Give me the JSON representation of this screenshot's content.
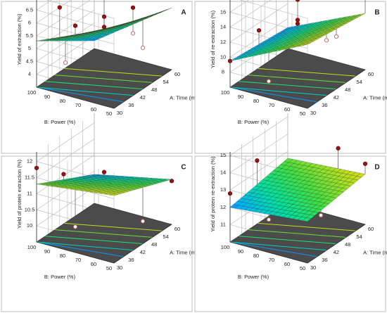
{
  "chart_data": [
    {
      "type": "surface3d",
      "panel_label": "A",
      "zlabel": "Yield of extraction (%)",
      "xlabel": "A: Time (min)",
      "ylabel": "B: Power (%)",
      "x_ticks": [
        "30",
        "36",
        "42",
        "48",
        "54",
        "60"
      ],
      "y_ticks": [
        "50",
        "60",
        "70",
        "80",
        "90",
        "100"
      ],
      "z_ticks": [
        "4",
        "4.5",
        "5",
        "5.5",
        "6",
        "6.5",
        "7"
      ],
      "xlim": [
        30,
        60
      ],
      "ylim": [
        50,
        100
      ],
      "zlim": [
        3.5,
        7
      ],
      "surface_corners": {
        "time30_power50": 6.6,
        "time60_power50": 5.9,
        "time30_power100": 5.3,
        "time60_power100": 3.8
      },
      "design_points": [
        {
          "time": 42,
          "power": 100,
          "value": 6.0,
          "above_surface": true
        },
        {
          "time": 30,
          "power": 75,
          "value": 6.3,
          "above_surface": true
        },
        {
          "time": 45,
          "power": 75,
          "value": 6.9,
          "above_surface": true
        },
        {
          "time": 45,
          "power": 75,
          "value": 5.9,
          "above_surface": true
        },
        {
          "time": 45,
          "power": 75,
          "value": 5.5,
          "above_surface": true
        },
        {
          "time": 60,
          "power": 75,
          "value": 5.5,
          "above_surface": true
        },
        {
          "time": 45,
          "power": 50,
          "value": 5.1,
          "above_surface": false
        },
        {
          "time": 60,
          "power": 75,
          "value": 4.5,
          "above_surface": false
        },
        {
          "time": 45,
          "power": 100,
          "value": 3.7,
          "above_surface": false
        }
      ]
    },
    {
      "type": "surface3d",
      "panel_label": "B",
      "zlabel": "Yield of re-extraction (%)",
      "xlabel": "A: Time (min)",
      "ylabel": "B: Power (%)",
      "x_ticks": [
        "30",
        "36",
        "42",
        "48",
        "54",
        "60"
      ],
      "y_ticks": [
        "50",
        "60",
        "70",
        "80",
        "90",
        "100"
      ],
      "z_ticks": [
        "8",
        "10",
        "12",
        "14",
        "16",
        "18"
      ],
      "xlim": [
        30,
        60
      ],
      "ylim": [
        50,
        100
      ],
      "zlim": [
        6,
        18
      ],
      "surface_corners": {
        "time30_power50": 14.5,
        "time60_power50": 13.5,
        "time30_power100": 9.5,
        "time60_power100": 8.8
      },
      "design_points": [
        {
          "time": 30,
          "power": 100,
          "value": 9.5,
          "above_surface": true
        },
        {
          "time": 45,
          "power": 75,
          "value": 16.5,
          "above_surface": true
        },
        {
          "time": 45,
          "power": 75,
          "value": 13.8,
          "above_surface": true
        },
        {
          "time": 45,
          "power": 75,
          "value": 13.3,
          "above_surface": true
        },
        {
          "time": 45,
          "power": 75,
          "value": 12.3,
          "above_surface": true
        },
        {
          "time": 60,
          "power": 50,
          "value": 15.8,
          "above_surface": true
        },
        {
          "time": 45,
          "power": 100,
          "value": 11.0,
          "above_surface": true
        },
        {
          "time": 30,
          "power": 75,
          "value": 8.2,
          "above_surface": false
        },
        {
          "time": 60,
          "power": 75,
          "value": 8.5,
          "above_surface": false
        },
        {
          "time": 45,
          "power": 50,
          "value": 13.0,
          "above_surface": false
        }
      ]
    },
    {
      "type": "surface3d",
      "panel_label": "C",
      "zlabel": "Yield of protein extraction (%)",
      "xlabel": "A: Time (min)",
      "ylabel": "B: Power (%)",
      "x_ticks": [
        "30",
        "36",
        "42",
        "48",
        "54",
        "60"
      ],
      "y_ticks": [
        "50",
        "60",
        "70",
        "80",
        "90",
        "100"
      ],
      "z_ticks": [
        "10",
        "10.5",
        "11",
        "11.5",
        "12"
      ],
      "xlim": [
        30,
        60
      ],
      "ylim": [
        50,
        100
      ],
      "zlim": [
        9.5,
        12.3
      ],
      "surface_corners": {
        "time30_power50": 11.6,
        "time60_power50": 10.9,
        "time30_power100": 11.3,
        "time60_power100": 10.4
      },
      "design_points": [
        {
          "time": 30,
          "power": 100,
          "value": 11.8,
          "above_surface": true
        },
        {
          "time": 36,
          "power": 90,
          "value": 11.5,
          "above_surface": true
        },
        {
          "time": 45,
          "power": 75,
          "value": 11.4,
          "above_surface": true
        },
        {
          "time": 45,
          "power": 75,
          "value": 11.25,
          "above_surface": true
        },
        {
          "time": 60,
          "power": 50,
          "value": 10.85,
          "above_surface": true
        },
        {
          "time": 48,
          "power": 75,
          "value": 10.9,
          "above_surface": true
        },
        {
          "time": 30,
          "power": 75,
          "value": 10.3,
          "above_surface": false
        },
        {
          "time": 45,
          "power": 50,
          "value": 10.2,
          "above_surface": false
        }
      ]
    },
    {
      "type": "surface3d",
      "panel_label": "D",
      "zlabel": "Yield of protein re-extraction (%)",
      "xlabel": "A: Time (min)",
      "ylabel": "B: Power (%)",
      "x_ticks": [
        "30",
        "36",
        "42",
        "48",
        "54",
        "60"
      ],
      "y_ticks": [
        "50",
        "60",
        "70",
        "80",
        "90",
        "100"
      ],
      "z_ticks": [
        "11",
        "12",
        "13",
        "14",
        "15"
      ],
      "xlim": [
        30,
        60
      ],
      "ylim": [
        50,
        100
      ],
      "zlim": [
        10,
        15.2
      ],
      "surface_corners": {
        "time30_power50": 12.4,
        "time60_power50": 12.9,
        "time30_power100": 12.0,
        "time60_power100": 12.6
      },
      "design_points": [
        {
          "time": 30,
          "power": 100,
          "value": 12.8,
          "above_surface": true
        },
        {
          "time": 36,
          "power": 90,
          "value": 14.5,
          "above_surface": true
        },
        {
          "time": 54,
          "power": 60,
          "value": 14.6,
          "above_surface": true
        },
        {
          "time": 48,
          "power": 70,
          "value": 13.8,
          "above_surface": true
        },
        {
          "time": 60,
          "power": 50,
          "value": 13.5,
          "above_surface": true
        },
        {
          "time": 42,
          "power": 75,
          "value": 11.9,
          "above_surface": true
        },
        {
          "time": 30,
          "power": 75,
          "value": 11.9,
          "above_surface": false
        },
        {
          "time": 45,
          "power": 60,
          "value": 11.4,
          "above_surface": false
        }
      ]
    }
  ],
  "colors": {
    "panel_border": "#bdbdbd",
    "axis_line": "#333333",
    "grid_line": "#b5b5b5",
    "floor_fill": "#4b4b4b",
    "surface_mesh": "#2a2a2a",
    "point_fill": "#9c1010",
    "point_stroke": "#5a0000",
    "hollow_point_stroke": "#c86060",
    "surface_gradient": [
      "#0a2cff",
      "#00b0ff",
      "#00e0a0",
      "#40e040",
      "#b0e020",
      "#ffd700"
    ]
  }
}
